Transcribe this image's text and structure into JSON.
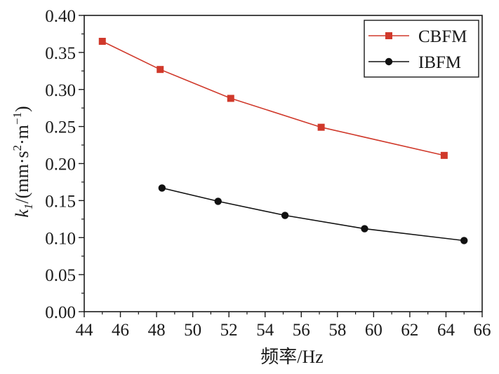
{
  "chart_data": {
    "type": "line",
    "xlabel": "频率/Hz",
    "ylabel": {
      "k": "k",
      "sub": "1",
      "unit_prefix": "/(mm·s",
      "sq": "2",
      "unit_mid": "·m",
      "inv": "−1",
      "unit_suffix": ")"
    },
    "xlim": [
      44,
      66
    ],
    "ylim": [
      0.0,
      0.4
    ],
    "xticks": [
      "44",
      "46",
      "48",
      "50",
      "52",
      "54",
      "56",
      "58",
      "60",
      "62",
      "64",
      "66"
    ],
    "yticks": [
      "0.00",
      "0.05",
      "0.10",
      "0.15",
      "0.20",
      "0.25",
      "0.30",
      "0.35",
      "0.40"
    ],
    "legend_position": "top-right",
    "series": [
      {
        "name": "CBFM",
        "color": "#d0392b",
        "marker": "square",
        "x": [
          45.0,
          48.2,
          52.1,
          57.1,
          63.9
        ],
        "y": [
          0.365,
          0.327,
          0.288,
          0.249,
          0.211
        ]
      },
      {
        "name": "IBFM",
        "color": "#111111",
        "marker": "circle",
        "x": [
          48.3,
          51.4,
          55.1,
          59.5,
          65.0
        ],
        "y": [
          0.167,
          0.149,
          0.13,
          0.112,
          0.096
        ]
      }
    ]
  }
}
